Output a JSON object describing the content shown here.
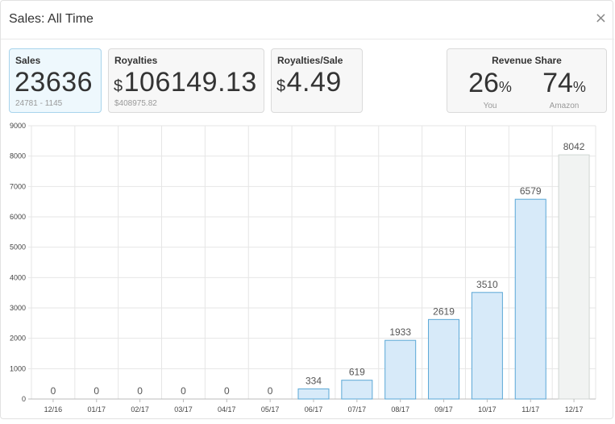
{
  "modal": {
    "title": "Sales: All Time",
    "close_label": "×"
  },
  "cards": {
    "sales": {
      "label": "Sales",
      "value": "23636",
      "sub": "24781 - 1145"
    },
    "royalties": {
      "label": "Royalties",
      "currency": "$",
      "value": "106149.13",
      "sub": "$408975.82"
    },
    "royalties_per_sale": {
      "label": "Royalties/Sale",
      "currency": "$",
      "value": "4.49"
    },
    "revenue_share": {
      "label": "Revenue Share",
      "you_pct": "26",
      "you_label": "You",
      "amazon_pct": "74",
      "amazon_label": "Amazon",
      "pct_sign": "%"
    }
  },
  "colors": {
    "bar_fill": "#d7eaf9",
    "bar_stroke": "#5aa7d6",
    "last_bar_fill": "#f1f3f2",
    "last_bar_stroke": "#d0d6d3",
    "grid": "#e6e6e6",
    "active_card_bg": "#eef8fd"
  },
  "chart_data": {
    "type": "bar",
    "categories": [
      "12/16",
      "01/17",
      "02/17",
      "03/17",
      "04/17",
      "05/17",
      "06/17",
      "07/17",
      "08/17",
      "09/17",
      "10/17",
      "11/17",
      "12/17"
    ],
    "values": [
      0,
      0,
      0,
      0,
      0,
      0,
      334,
      619,
      1933,
      2619,
      3510,
      6579,
      8042
    ],
    "data_labels": [
      "0",
      "0",
      "0",
      "0",
      "0",
      "0",
      "334",
      "619",
      "1933",
      "2619",
      "3510",
      "6579",
      "8042"
    ],
    "yticks": [
      0,
      1000,
      2000,
      3000,
      4000,
      5000,
      6000,
      7000,
      8000,
      9000
    ],
    "ylim": [
      0,
      9000
    ],
    "title": "",
    "xlabel": "",
    "ylabel": "",
    "grid": true,
    "legend": "none"
  }
}
